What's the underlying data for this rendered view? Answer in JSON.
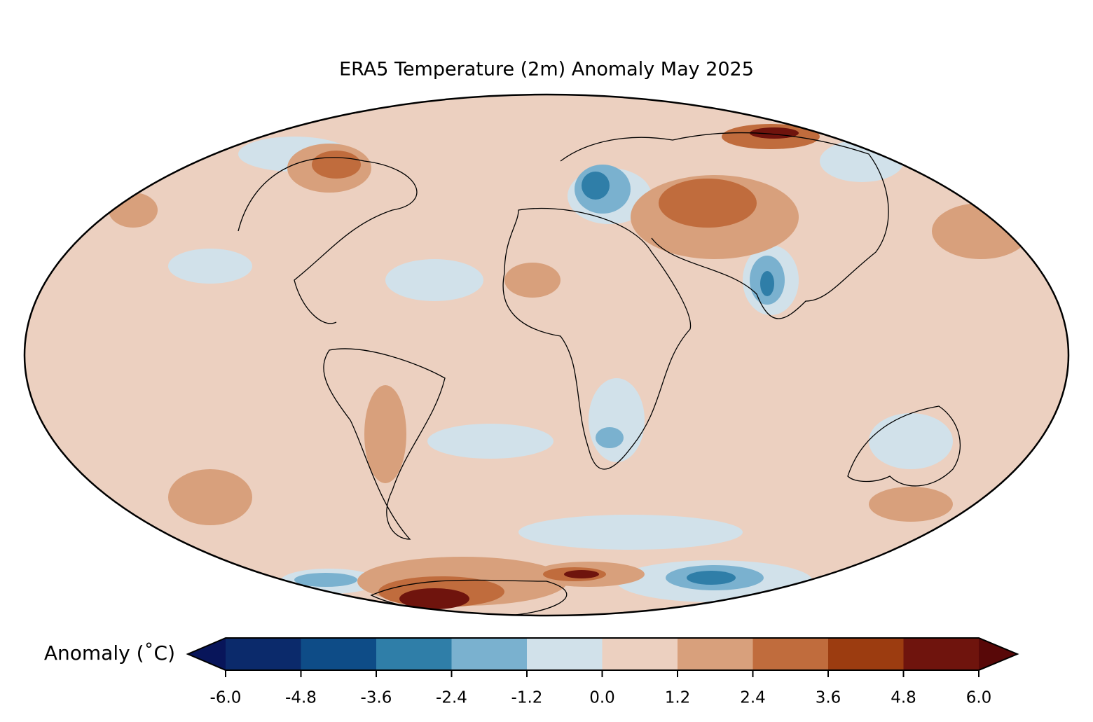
{
  "map": {
    "title": "ERA5 Temperature (2m) Anomaly May 2025",
    "colorbar": {
      "label": "Anomaly (˚C)",
      "lim": [
        -6,
        6
      ],
      "ticks": [
        {
          "value": -6,
          "label": "-6.0"
        },
        {
          "value": -4.8,
          "label": "-4.8"
        },
        {
          "value": -3.6,
          "label": "-3.6"
        },
        {
          "value": -2.4,
          "label": "-2.4"
        },
        {
          "value": -1.2,
          "label": "-1.2"
        },
        {
          "value": 0,
          "label": "0.0"
        },
        {
          "value": 1.2,
          "label": "1.2"
        },
        {
          "value": 2.4,
          "label": "2.4"
        },
        {
          "value": 3.6,
          "label": "3.6"
        },
        {
          "value": 4.8,
          "label": "4.8"
        },
        {
          "value": 6,
          "label": "6.0"
        }
      ],
      "colors": [
        "#0b2a6b",
        "#0e4c87",
        "#2f7ea8",
        "#7ab1cf",
        "#d1e1ea",
        "#ecd0c0",
        "#d8a07c",
        "#c06c3d",
        "#9c3c10",
        "#6f140d"
      ],
      "under_color": "#08155a",
      "over_color": "#580808"
    }
  }
}
